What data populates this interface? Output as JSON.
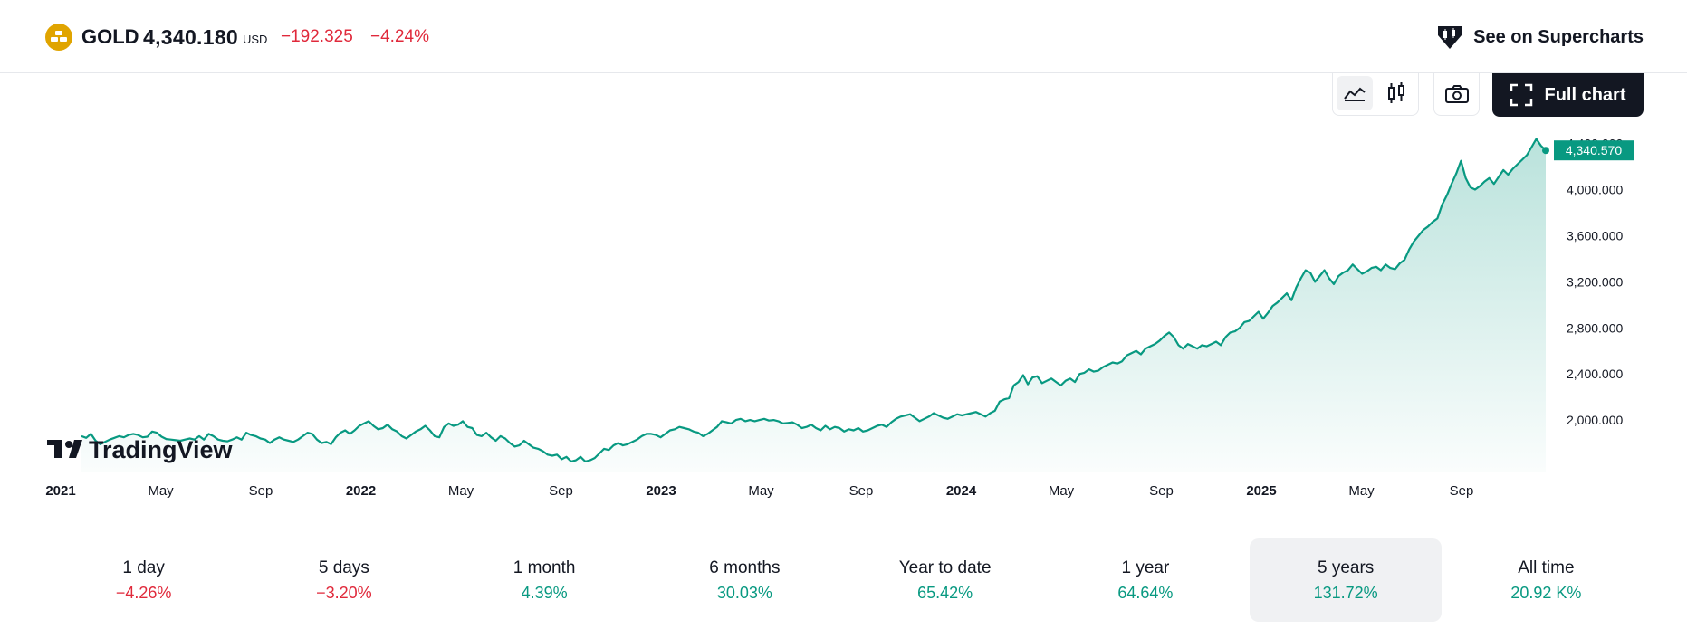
{
  "header": {
    "symbol": "GOLD",
    "price": "4,340.180",
    "currency": "USD",
    "change": "−192.325",
    "change_percent": "−4.24%",
    "supercharts_label": "See on Supercharts",
    "logo_icon": "gold-bars-icon"
  },
  "toolbar": {
    "line_icon": "line-chart-icon",
    "candles_icon": "candlestick-icon",
    "camera_icon": "camera-icon",
    "fullchart_icon": "expand-icon",
    "fullchart_label": "Full chart",
    "active_style": "line"
  },
  "watermark": "TradingView",
  "colors": {
    "line": "#089981",
    "negative": "#e0293b",
    "positive": "#089981",
    "text": "#131722",
    "price_tag": "#089981"
  },
  "chart_data": {
    "type": "area",
    "series": [
      {
        "values": [
          1860,
          1845,
          1880,
          1820,
          1790,
          1810,
          1830,
          1845,
          1860,
          1850,
          1870,
          1880,
          1870,
          1850,
          1855,
          1900,
          1890,
          1855,
          1835,
          1830,
          1825,
          1820,
          1830,
          1840,
          1830,
          1860,
          1830,
          1880,
          1860,
          1830,
          1820,
          1815,
          1830,
          1850,
          1830,
          1890,
          1870,
          1860,
          1840,
          1830,
          1800,
          1830,
          1850,
          1830,
          1820,
          1810,
          1830,
          1860,
          1890,
          1880,
          1830,
          1800,
          1810,
          1790,
          1850,
          1890,
          1910,
          1880,
          1910,
          1950,
          1970,
          1990,
          1950,
          1920,
          1930,
          1960,
          1920,
          1900,
          1860,
          1840,
          1870,
          1900,
          1920,
          1950,
          1910,
          1860,
          1850,
          1940,
          1970,
          1950,
          1960,
          1990,
          1940,
          1930,
          1870,
          1860,
          1890,
          1850,
          1820,
          1860,
          1840,
          1800,
          1770,
          1780,
          1820,
          1790,
          1760,
          1750,
          1730,
          1700,
          1690,
          1700,
          1660,
          1680,
          1640,
          1650,
          1680,
          1640,
          1650,
          1670,
          1710,
          1750,
          1740,
          1780,
          1800,
          1780,
          1790,
          1810,
          1830,
          1860,
          1880,
          1880,
          1870,
          1850,
          1880,
          1910,
          1920,
          1940,
          1930,
          1920,
          1900,
          1890,
          1860,
          1880,
          1910,
          1940,
          1990,
          1980,
          1970,
          2000,
          2010,
          1990,
          2000,
          1990,
          2000,
          2010,
          1995,
          2000,
          1990,
          1970,
          1975,
          1980,
          1960,
          1930,
          1940,
          1960,
          1930,
          1910,
          1950,
          1920,
          1940,
          1930,
          1900,
          1920,
          1910,
          1930,
          1900,
          1910,
          1930,
          1950,
          1960,
          1940,
          1980,
          2010,
          2030,
          2040,
          2050,
          2020,
          1990,
          2010,
          2030,
          2060,
          2040,
          2020,
          2010,
          2030,
          2050,
          2040,
          2050,
          2060,
          2070,
          2050,
          2030,
          2060,
          2080,
          2160,
          2180,
          2190,
          2300,
          2330,
          2390,
          2310,
          2370,
          2380,
          2320,
          2340,
          2360,
          2330,
          2300,
          2340,
          2360,
          2330,
          2400,
          2410,
          2440,
          2420,
          2430,
          2460,
          2480,
          2500,
          2490,
          2510,
          2560,
          2580,
          2600,
          2570,
          2620,
          2640,
          2660,
          2690,
          2730,
          2760,
          2720,
          2650,
          2620,
          2660,
          2640,
          2620,
          2650,
          2640,
          2660,
          2680,
          2650,
          2720,
          2760,
          2770,
          2800,
          2850,
          2860,
          2900,
          2940,
          2880,
          2930,
          2990,
          3020,
          3060,
          3100,
          3040,
          3150,
          3230,
          3300,
          3280,
          3200,
          3250,
          3300,
          3230,
          3180,
          3250,
          3280,
          3300,
          3350,
          3310,
          3270,
          3290,
          3320,
          3330,
          3300,
          3350,
          3320,
          3310,
          3360,
          3390,
          3480,
          3550,
          3600,
          3650,
          3680,
          3720,
          3750,
          3870,
          3950,
          4050,
          4140,
          4250,
          4100,
          4020,
          4000,
          4030,
          4070,
          4100,
          4050,
          4110,
          4170,
          4130,
          4180,
          4220,
          4260,
          4300,
          4370,
          4440,
          4381,
          4340.57
        ]
      }
    ],
    "x_ticks": [
      "2021",
      "May",
      "Sep",
      "2022",
      "May",
      "Sep",
      "2023",
      "May",
      "Sep",
      "2024",
      "May",
      "Sep",
      "2025",
      "May",
      "Sep"
    ],
    "y_ticks": [
      "4,400.000",
      "4,000.000",
      "3,600.000",
      "3,200.000",
      "2,800.000",
      "2,400.000",
      "2,000.000"
    ],
    "last_value_label": "4,340.570",
    "ylim": [
      1600,
      4460
    ],
    "grid": false
  },
  "periods": [
    {
      "label": "1 day",
      "value": "−4.26%",
      "sign": "neg"
    },
    {
      "label": "5 days",
      "value": "−3.20%",
      "sign": "neg"
    },
    {
      "label": "1 month",
      "value": "4.39%",
      "sign": "pos"
    },
    {
      "label": "6 months",
      "value": "30.03%",
      "sign": "pos"
    },
    {
      "label": "Year to date",
      "value": "65.42%",
      "sign": "pos"
    },
    {
      "label": "1 year",
      "value": "64.64%",
      "sign": "pos"
    },
    {
      "label": "5 years",
      "value": "131.72%",
      "sign": "pos",
      "active": true
    },
    {
      "label": "All time",
      "value": "20.92 K%",
      "sign": "pos"
    }
  ]
}
